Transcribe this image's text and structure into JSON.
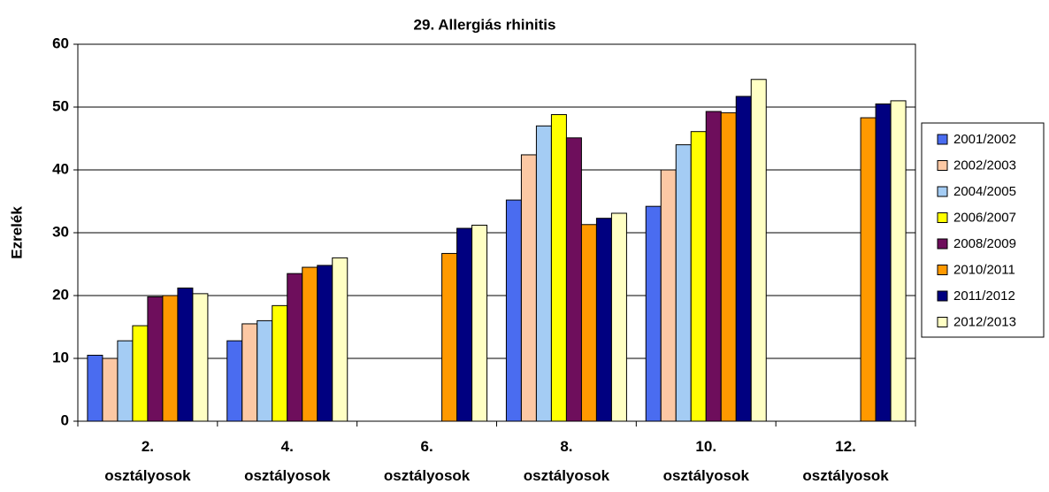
{
  "chart_data": {
    "type": "bar",
    "title": "29. Allergiás rhinitis",
    "y_label": "Ezrelék",
    "categories": [
      "2. osztályosok",
      "4. osztályosok",
      "6. osztályosok",
      "8. osztályosok",
      "10. osztályosok",
      "12. osztályosok"
    ],
    "series": [
      {
        "name": "2001/2002",
        "color": "#4a6cf0",
        "values": [
          10.5,
          12.8,
          null,
          35.2,
          34.2,
          null
        ]
      },
      {
        "name": "2002/2003",
        "color": "#fcc8a4",
        "values": [
          10,
          15.5,
          null,
          42.4,
          40,
          null
        ]
      },
      {
        "name": "2004/2005",
        "color": "#a4ccf4",
        "values": [
          12.8,
          16,
          null,
          47,
          44,
          null
        ]
      },
      {
        "name": "2006/2007",
        "color": "#ffff00",
        "values": [
          15.2,
          18.4,
          null,
          48.8,
          46.1,
          null
        ]
      },
      {
        "name": "2008/2009",
        "color": "#6e0e5c",
        "values": [
          19.8,
          23.5,
          null,
          45.1,
          49.3,
          null
        ]
      },
      {
        "name": "2010/2011",
        "color": "#ff9900",
        "values": [
          20,
          24.5,
          26.7,
          31.3,
          49.1,
          48.3
        ]
      },
      {
        "name": "2011/2012",
        "color": "#000080",
        "values": [
          21.2,
          24.8,
          30.7,
          32.3,
          51.7,
          50.5
        ]
      },
      {
        "name": "2012/2013",
        "color": "#ffffc4",
        "values": [
          20.3,
          26,
          31.2,
          33.1,
          54.4,
          51
        ]
      }
    ],
    "ylim": [
      0,
      60
    ],
    "yticks": [
      0,
      10,
      20,
      30,
      40,
      50,
      60
    ],
    "grid": true,
    "legend": "right"
  }
}
